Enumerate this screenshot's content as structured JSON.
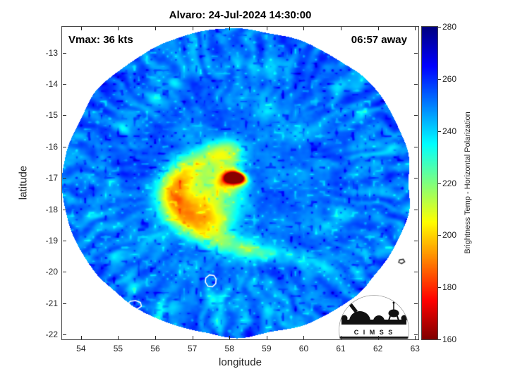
{
  "chart_data": {
    "type": "heatmap",
    "title": "Alvaro: 24-Jul-2024 14:30:00",
    "storm_name": "Alvaro",
    "timestamp": "24-Jul-2024 14:30:00",
    "vmax_label": "Vmax: 36 kts",
    "vmax_kts": 36,
    "time_offset_label": "06:57 away",
    "xlabel": "longitude",
    "ylabel": "latitude",
    "xlim": [
      53.49,
      63.09
    ],
    "ylim": [
      -22.16,
      -12.17
    ],
    "xticks": [
      54,
      55,
      56,
      57,
      58,
      59,
      60,
      61,
      62,
      63
    ],
    "yticks": [
      -13,
      -14,
      -15,
      -16,
      -17,
      -18,
      -19,
      -20,
      -21,
      -22
    ],
    "colorbar": {
      "label": "Brightness Temp - Horizontal Polarization",
      "min": 160,
      "max": 280,
      "ticks": [
        280,
        260,
        240,
        220,
        200,
        180,
        160
      ],
      "colormap": "jet-reversed"
    },
    "swath": {
      "center_lon": 58.21,
      "center_lat": -17.16,
      "radius_deg": 4.9,
      "lon_scale": 0.955,
      "background_temp_k": 252
    },
    "storm": {
      "eye": [
        [
          58.0,
          -17.0,
          70,
          0.12
        ],
        [
          58.15,
          -16.97,
          80,
          0.13
        ],
        [
          58.3,
          -17.03,
          62,
          0.11
        ],
        [
          58.15,
          -17.14,
          26,
          0.28
        ]
      ],
      "convective_band": [
        [
          57.95,
          -16.1,
          24,
          0.3
        ],
        [
          57.5,
          -16.28,
          27,
          0.31
        ],
        [
          57.0,
          -16.6,
          30,
          0.32
        ],
        [
          56.62,
          -17.0,
          32,
          0.33
        ],
        [
          56.48,
          -17.5,
          34,
          0.34
        ],
        [
          56.58,
          -18.0,
          34,
          0.34
        ],
        [
          56.9,
          -18.45,
          32,
          0.33
        ],
        [
          57.35,
          -18.8,
          29,
          0.31
        ],
        [
          57.9,
          -19.1,
          25,
          0.27
        ],
        [
          58.5,
          -19.3,
          23,
          0.25
        ],
        [
          59.05,
          -19.35,
          21,
          0.24
        ],
        [
          59.6,
          -19.42,
          17,
          0.23
        ],
        [
          60.15,
          -19.6,
          12,
          0.23
        ],
        [
          60.65,
          -19.85,
          8,
          0.24
        ],
        [
          57.5,
          -17.45,
          28,
          0.4
        ],
        [
          57.3,
          -17.95,
          28,
          0.38
        ],
        [
          57.75,
          -18.35,
          22,
          0.33
        ],
        [
          57.8,
          -17.05,
          18,
          0.3
        ],
        [
          58.3,
          -17.8,
          18,
          0.32
        ],
        [
          58.05,
          -16.45,
          18,
          0.28
        ]
      ],
      "cold_patches": [
        [
          59.45,
          -13.3,
          11,
          0.18
        ],
        [
          58.85,
          -13.45,
          9,
          0.25
        ],
        [
          58.3,
          -13.18,
          10,
          0.2
        ],
        [
          57.7,
          -13.3,
          8,
          0.22
        ],
        [
          57.0,
          -13.6,
          9,
          0.18
        ],
        [
          56.5,
          -13.95,
          10,
          0.16
        ],
        [
          60.9,
          -14.05,
          12,
          0.17
        ],
        [
          61.55,
          -14.85,
          13,
          0.18
        ],
        [
          62.3,
          -16.0,
          12,
          0.16
        ],
        [
          60.55,
          -16.6,
          10,
          0.17
        ],
        [
          61.05,
          -18.25,
          13,
          0.18
        ],
        [
          60.6,
          -18.6,
          8,
          0.2
        ],
        [
          60.15,
          -20.85,
          12,
          0.18
        ],
        [
          59.15,
          -21.3,
          12,
          0.18
        ],
        [
          58.45,
          -21.5,
          10,
          0.17
        ],
        [
          57.7,
          -21.6,
          8,
          0.2
        ],
        [
          57.6,
          -20.95,
          12,
          0.18
        ],
        [
          56.25,
          -21.2,
          12,
          0.17
        ],
        [
          55.3,
          -20.35,
          11,
          0.18
        ],
        [
          54.95,
          -19.55,
          12,
          0.17
        ],
        [
          54.35,
          -18.1,
          12,
          0.17
        ],
        [
          54.85,
          -17.25,
          9,
          0.2
        ],
        [
          54.6,
          -16.4,
          11,
          0.17
        ],
        [
          55.15,
          -15.35,
          9,
          0.17
        ],
        [
          55.95,
          -14.5,
          8,
          0.17
        ],
        [
          59.0,
          -14.85,
          8,
          0.18
        ],
        [
          59.9,
          -15.6,
          7,
          0.18
        ],
        [
          58.85,
          -20.4,
          9,
          0.2
        ],
        [
          57.0,
          -19.9,
          9,
          0.22
        ],
        [
          55.9,
          -19.0,
          8,
          0.2
        ],
        [
          62.05,
          -17.3,
          8,
          0.18
        ],
        [
          61.5,
          -19.9,
          8,
          0.18
        ]
      ]
    },
    "islands": [
      {
        "stroke": "#ffffff",
        "contour": [
          [
            55.24,
            -21.04
          ],
          [
            55.33,
            -20.94
          ],
          [
            55.47,
            -20.92
          ],
          [
            55.6,
            -20.98
          ],
          [
            55.63,
            -21.1
          ],
          [
            55.52,
            -21.19
          ],
          [
            55.36,
            -21.19
          ],
          [
            55.26,
            -21.12
          ]
        ]
      },
      {
        "stroke": "#ffffff",
        "contour": [
          [
            57.36,
            -20.2
          ],
          [
            57.46,
            -20.1
          ],
          [
            57.58,
            -20.12
          ],
          [
            57.64,
            -20.23
          ],
          [
            57.63,
            -20.38
          ],
          [
            57.54,
            -20.48
          ],
          [
            57.42,
            -20.46
          ],
          [
            57.35,
            -20.33
          ]
        ]
      },
      {
        "stroke": "#333333",
        "contour": [
          [
            62.58,
            -19.62
          ],
          [
            62.68,
            -19.6
          ],
          [
            62.72,
            -19.68
          ],
          [
            62.64,
            -19.74
          ],
          [
            62.56,
            -19.7
          ]
        ]
      }
    ]
  },
  "logo": {
    "text": "C I M S S"
  }
}
